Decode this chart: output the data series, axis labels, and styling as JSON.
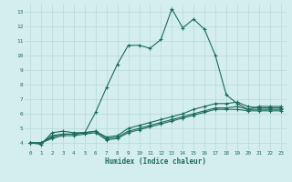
{
  "title": "",
  "xlabel": "Humidex (Indice chaleur)",
  "bg_color": "#d4eeee",
  "grid_color": "#b8d8d8",
  "line_color": "#1a6b5a",
  "xlim": [
    -0.5,
    23.5
  ],
  "ylim": [
    3.5,
    13.5
  ],
  "xticks": [
    0,
    1,
    2,
    3,
    4,
    5,
    6,
    7,
    8,
    9,
    10,
    11,
    12,
    13,
    14,
    15,
    16,
    17,
    18,
    19,
    20,
    21,
    22,
    23
  ],
  "yticks": [
    4,
    5,
    6,
    7,
    8,
    9,
    10,
    11,
    12,
    13
  ],
  "series": [
    [
      4.0,
      3.9,
      4.7,
      4.8,
      4.7,
      4.7,
      6.1,
      7.8,
      9.4,
      10.7,
      10.7,
      10.5,
      11.1,
      13.2,
      11.9,
      12.5,
      11.8,
      10.0,
      7.3,
      6.7,
      6.3,
      6.5,
      6.5,
      6.5
    ],
    [
      4.0,
      4.0,
      4.5,
      4.6,
      4.6,
      4.7,
      4.8,
      4.4,
      4.5,
      5.0,
      5.2,
      5.4,
      5.6,
      5.8,
      6.0,
      6.3,
      6.5,
      6.7,
      6.7,
      6.8,
      6.5,
      6.4,
      6.4,
      6.4
    ],
    [
      4.0,
      4.0,
      4.4,
      4.6,
      4.6,
      4.7,
      4.8,
      4.3,
      4.4,
      4.8,
      5.0,
      5.2,
      5.4,
      5.6,
      5.8,
      6.0,
      6.2,
      6.4,
      6.4,
      6.5,
      6.3,
      6.3,
      6.3,
      6.3
    ],
    [
      4.0,
      4.0,
      4.3,
      4.5,
      4.5,
      4.6,
      4.7,
      4.2,
      4.3,
      4.7,
      4.9,
      5.1,
      5.3,
      5.5,
      5.7,
      5.9,
      6.1,
      6.3,
      6.3,
      6.3,
      6.2,
      6.2,
      6.2,
      6.2
    ]
  ]
}
